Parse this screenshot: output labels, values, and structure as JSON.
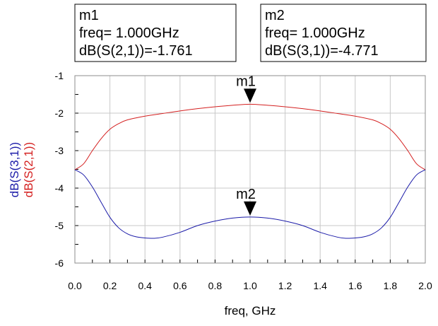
{
  "chart_data": {
    "type": "line",
    "xlabel": "freq, GHz",
    "ylabels": [
      {
        "text": "dB(S(3,1))",
        "color": "#1a1aa8"
      },
      {
        "text": "dB(S(2,1))",
        "color": "#d42020"
      }
    ],
    "xlim": [
      0.0,
      2.0
    ],
    "ylim": [
      -6,
      -1
    ],
    "xticks": [
      0.0,
      0.2,
      0.4,
      0.6,
      0.8,
      1.0,
      1.2,
      1.4,
      1.6,
      1.8,
      2.0
    ],
    "xtick_labels": [
      "0.0",
      "0.2",
      "0.4",
      "0.6",
      "0.8",
      "1.0",
      "1.2",
      "1.4",
      "1.6",
      "1.8",
      "2.0"
    ],
    "yticks": [
      -1,
      -2,
      -3,
      -4,
      -5,
      -6
    ],
    "ytick_labels": [
      "-1",
      "-2",
      "-3",
      "-4",
      "-5",
      "-6"
    ],
    "grid": true,
    "series": [
      {
        "name": "dB(S(2,1))",
        "color": "#d42020",
        "x": [
          0.0,
          0.05,
          0.1,
          0.15,
          0.2,
          0.25,
          0.3,
          0.4,
          0.5,
          0.6,
          0.7,
          0.8,
          0.9,
          1.0,
          1.1,
          1.2,
          1.3,
          1.4,
          1.5,
          1.6,
          1.7,
          1.75,
          1.8,
          1.85,
          1.9,
          1.95,
          2.0
        ],
        "y": [
          -3.51,
          -3.35,
          -3.0,
          -2.68,
          -2.43,
          -2.28,
          -2.18,
          -2.08,
          -2.01,
          -1.94,
          -1.88,
          -1.83,
          -1.79,
          -1.761,
          -1.79,
          -1.83,
          -1.88,
          -1.94,
          -2.01,
          -2.08,
          -2.18,
          -2.28,
          -2.43,
          -2.68,
          -3.0,
          -3.35,
          -3.51
        ]
      },
      {
        "name": "dB(S(3,1))",
        "color": "#1a1aa8",
        "x": [
          0.0,
          0.05,
          0.1,
          0.15,
          0.2,
          0.25,
          0.3,
          0.35,
          0.4,
          0.45,
          0.5,
          0.6,
          0.7,
          0.8,
          0.9,
          1.0,
          1.1,
          1.2,
          1.3,
          1.4,
          1.5,
          1.55,
          1.6,
          1.65,
          1.7,
          1.75,
          1.8,
          1.85,
          1.9,
          1.95,
          2.0
        ],
        "y": [
          -3.51,
          -3.65,
          -3.97,
          -4.38,
          -4.78,
          -5.06,
          -5.22,
          -5.3,
          -5.33,
          -5.34,
          -5.31,
          -5.18,
          -5.0,
          -4.88,
          -4.8,
          -4.771,
          -4.8,
          -4.88,
          -5.0,
          -5.18,
          -5.31,
          -5.34,
          -5.33,
          -5.3,
          -5.22,
          -5.06,
          -4.78,
          -4.38,
          -3.97,
          -3.65,
          -3.51
        ]
      }
    ],
    "markers": [
      {
        "name": "m1",
        "x": 1.0,
        "y": -1.761,
        "readout": [
          "m1",
          "freq= 1.000GHz",
          "dB(S(2,1))=-1.761"
        ]
      },
      {
        "name": "m2",
        "x": 1.0,
        "y": -4.771,
        "readout": [
          "m2",
          "freq= 1.000GHz",
          "dB(S(3,1))=-4.771"
        ]
      }
    ]
  }
}
